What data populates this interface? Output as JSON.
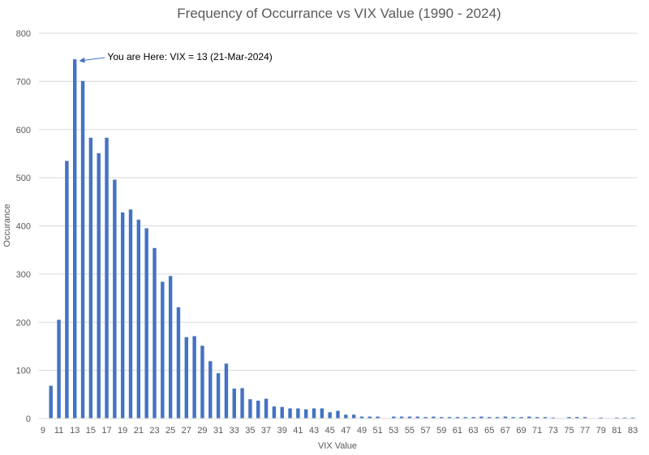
{
  "chart_data": {
    "type": "bar",
    "title": "Frequency of Occurrance vs VIX Value (1990 - 2024)",
    "xlabel": "VIX Value",
    "ylabel": "Occurance",
    "categories": [
      9,
      10,
      11,
      12,
      13,
      14,
      15,
      16,
      17,
      18,
      19,
      20,
      21,
      22,
      23,
      24,
      25,
      26,
      27,
      28,
      29,
      30,
      31,
      32,
      33,
      34,
      35,
      36,
      37,
      38,
      39,
      40,
      41,
      42,
      43,
      44,
      45,
      46,
      47,
      48,
      49,
      50,
      51,
      52,
      53,
      54,
      55,
      56,
      57,
      58,
      59,
      60,
      61,
      62,
      63,
      64,
      65,
      66,
      67,
      68,
      69,
      70,
      71,
      72,
      73,
      74,
      75,
      76,
      77,
      78,
      79,
      80,
      81,
      82,
      83
    ],
    "x_tick_labels": [
      "9",
      "11",
      "13",
      "15",
      "17",
      "19",
      "21",
      "23",
      "25",
      "27",
      "29",
      "31",
      "33",
      "35",
      "37",
      "39",
      "41",
      "43",
      "45",
      "47",
      "49",
      "51",
      "53",
      "55",
      "57",
      "59",
      "61",
      "63",
      "65",
      "67",
      "69",
      "71",
      "73",
      "75",
      "77",
      "79",
      "81",
      "83"
    ],
    "values": [
      0,
      68,
      205,
      535,
      746,
      701,
      583,
      551,
      583,
      496,
      428,
      434,
      413,
      395,
      354,
      284,
      296,
      231,
      169,
      171,
      151,
      119,
      94,
      114,
      62,
      63,
      40,
      37,
      41,
      25,
      24,
      21,
      21,
      19,
      21,
      21,
      13,
      16,
      8,
      8,
      4,
      4,
      4,
      0,
      4,
      4,
      4,
      4,
      3,
      4,
      3,
      3,
      3,
      3,
      3,
      4,
      3,
      3,
      4,
      3,
      3,
      4,
      3,
      3,
      2,
      0,
      3,
      3,
      3,
      0,
      2,
      0,
      2,
      2,
      2
    ],
    "ylim": [
      0,
      800
    ],
    "y_ticks": [
      0,
      100,
      200,
      300,
      400,
      500,
      600,
      700,
      800
    ],
    "grid": "horizontal",
    "legend": "none",
    "bar_color": "#4472C4",
    "annotation": {
      "text": "You are Here: VIX = 13  (21-Mar-2024)",
      "target_category": 13
    }
  }
}
